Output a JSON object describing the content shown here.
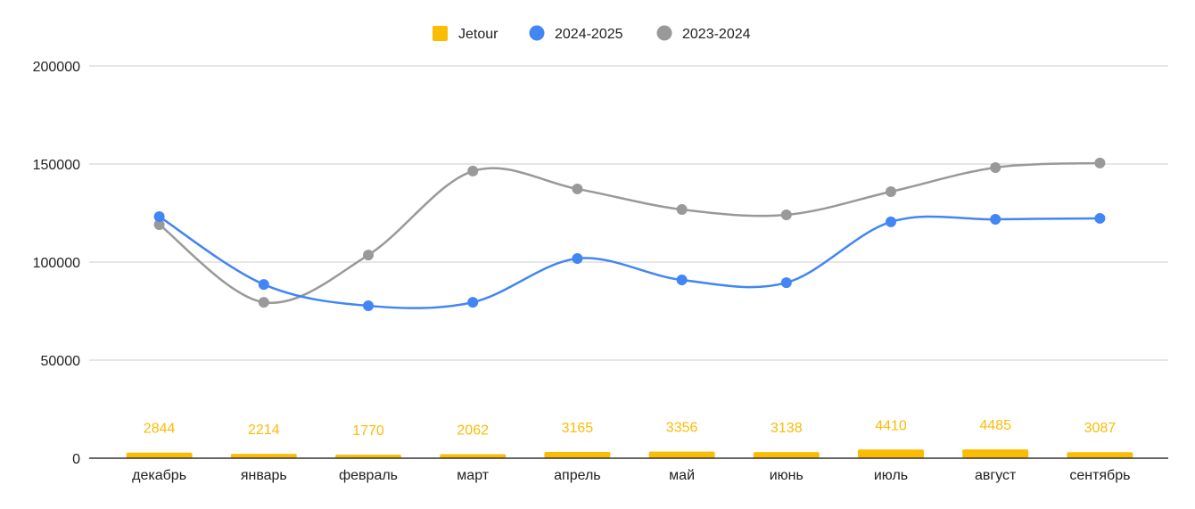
{
  "chart_data": {
    "type": "bar+line",
    "title": "",
    "categories": [
      "декабрь",
      "январь",
      "февраль",
      "март",
      "апрель",
      "май",
      "июнь",
      "июль",
      "август",
      "сентябрь"
    ],
    "series": [
      {
        "name": "Jetour",
        "kind": "bar",
        "color": "#fbbc04",
        "values": [
          2844,
          2214,
          1770,
          2062,
          3165,
          3356,
          3138,
          4410,
          4485,
          3087
        ]
      },
      {
        "name": "2024-2025",
        "kind": "line",
        "color": "#4285f4",
        "values": [
          123200,
          88600,
          77700,
          79500,
          101800,
          90900,
          89500,
          120500,
          121800,
          122300
        ]
      },
      {
        "name": "2023-2024",
        "kind": "line",
        "color": "#999999",
        "values": [
          119100,
          79500,
          103600,
          146400,
          137300,
          126800,
          124100,
          135900,
          148200,
          150500
        ]
      }
    ],
    "yticks": [
      0,
      50000,
      100000,
      150000,
      200000
    ],
    "ylim": [
      0,
      200000
    ],
    "grid": true,
    "legend": "top",
    "xlabel": "",
    "ylabel": ""
  }
}
